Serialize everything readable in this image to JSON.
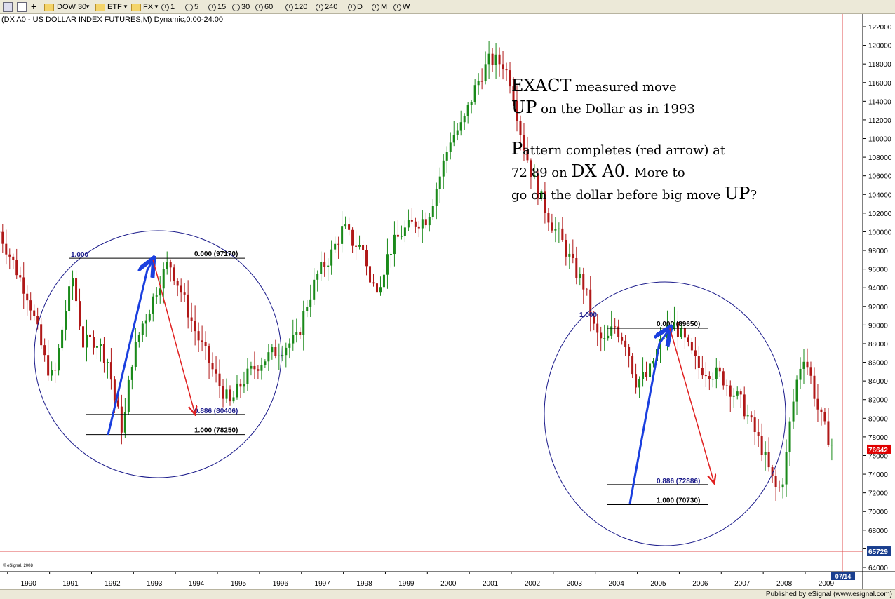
{
  "toolbar": {
    "items": [
      "DOW 30",
      "ETF",
      "FX"
    ],
    "intervals": [
      "1",
      "5",
      "15",
      "30",
      "60",
      "120",
      "240",
      "D",
      "M",
      "W"
    ]
  },
  "chart": {
    "title": "(DX A0 - US DOLLAR INDEX FUTURES,M) Dynamic,0:00-24:00",
    "watermark": "© eSignal, 2008",
    "published": "Published by eSignal (www.esignal.com)",
    "date_label": "07/14",
    "current_price": "76642",
    "crosshair_price": "65729"
  },
  "annotation": {
    "line1_big": "EXACT",
    "line1_rest": " measured move",
    "line2_big": "UP",
    "line2_rest": " on the Dollar as in 1993",
    "line3_big": "P",
    "line3_rest": "attern completes (red arrow) at",
    "line4_a": "72 89 on ",
    "line4_big": "DX A0.",
    "line4_rest": "  More to",
    "line5_a": "go on the dollar before big move ",
    "line5_big": "UP",
    "line5_rest": "?"
  },
  "fib_left": {
    "start": "1.000",
    "top": "0.000 (97170)",
    "mid": "0.886 (80406)",
    "bottom": "1.000 (78250)"
  },
  "fib_right": {
    "start": "1.000",
    "top": "0.000 (89650)",
    "mid": "0.886 (72886)",
    "bottom": "1.000 (70730)"
  },
  "chart_data": {
    "type": "candlestick",
    "title": "(DX A0 - US DOLLAR INDEX FUTURES,M) Dynamic,0:00-24:00",
    "ylim": [
      63500,
      122700
    ],
    "y_ticks": [
      64000,
      66000,
      68000,
      70000,
      72000,
      74000,
      76000,
      78000,
      80000,
      82000,
      84000,
      86000,
      88000,
      90000,
      92000,
      94000,
      96000,
      98000,
      100000,
      102000,
      104000,
      106000,
      108000,
      110000,
      112000,
      114000,
      116000,
      118000,
      120000,
      122000
    ],
    "x_labels": [
      "1990",
      "1991",
      "1992",
      "1993",
      "1994",
      "1995",
      "1996",
      "1997",
      "1998",
      "1999",
      "2000",
      "2001",
      "2002",
      "2003",
      "2004",
      "2005",
      "2006",
      "2007",
      "2008",
      "2009"
    ],
    "x_range": [
      1989.82,
      2010.37
    ],
    "price_path": [
      [
        1989.8,
        100000
      ],
      [
        1990.1,
        97000
      ],
      [
        1990.5,
        93000
      ],
      [
        1990.9,
        86000
      ],
      [
        1991.1,
        84000
      ],
      [
        1991.35,
        91000
      ],
      [
        1991.55,
        95000
      ],
      [
        1991.8,
        88000
      ],
      [
        1992.1,
        88500
      ],
      [
        1992.4,
        86000
      ],
      [
        1992.55,
        82000
      ],
      [
        1992.75,
        78500
      ],
      [
        1992.95,
        86000
      ],
      [
        1993.2,
        90000
      ],
      [
        1993.4,
        92000
      ],
      [
        1993.6,
        94500
      ],
      [
        1993.85,
        96800
      ],
      [
        1994.1,
        94000
      ],
      [
        1994.5,
        89000
      ],
      [
        1994.8,
        86000
      ],
      [
        1995.0,
        84000
      ],
      [
        1995.3,
        81500
      ],
      [
        1995.6,
        84000
      ],
      [
        1996.0,
        86000
      ],
      [
        1996.5,
        87500
      ],
      [
        1996.9,
        88500
      ],
      [
        1997.1,
        92000
      ],
      [
        1997.4,
        95500
      ],
      [
        1997.7,
        97500
      ],
      [
        1998.0,
        100500
      ],
      [
        1998.2,
        99000
      ],
      [
        1998.5,
        98000
      ],
      [
        1998.65,
        94000
      ],
      [
        1998.85,
        94500
      ],
      [
        1999.1,
        98000
      ],
      [
        1999.4,
        100000
      ],
      [
        1999.7,
        101000
      ],
      [
        2000.0,
        101500
      ],
      [
        2000.3,
        106000
      ],
      [
        2000.55,
        110000
      ],
      [
        2000.85,
        111500
      ],
      [
        2001.1,
        115000
      ],
      [
        2001.3,
        117000
      ],
      [
        2001.5,
        118500
      ],
      [
        2001.8,
        118000
      ],
      [
        2002.0,
        116000
      ],
      [
        2002.25,
        110000
      ],
      [
        2002.5,
        106000
      ],
      [
        2002.75,
        103000
      ],
      [
        2002.95,
        101000
      ],
      [
        2003.2,
        99000
      ],
      [
        2003.5,
        96000
      ],
      [
        2003.75,
        94000
      ],
      [
        2004.0,
        89000
      ],
      [
        2004.25,
        88000
      ],
      [
        2004.45,
        90000
      ],
      [
        2004.75,
        88000
      ],
      [
        2004.95,
        84000
      ],
      [
        2005.25,
        84500
      ],
      [
        2005.45,
        87000
      ],
      [
        2005.7,
        89500
      ],
      [
        2005.9,
        90000
      ],
      [
        2006.15,
        88000
      ],
      [
        2006.45,
        85500
      ],
      [
        2006.75,
        85000
      ],
      [
        2007.0,
        84500
      ],
      [
        2007.25,
        83000
      ],
      [
        2007.5,
        81500
      ],
      [
        2007.75,
        79000
      ],
      [
        2007.95,
        77000
      ],
      [
        2008.2,
        73500
      ],
      [
        2008.35,
        72000
      ],
      [
        2008.5,
        74000
      ],
      [
        2008.65,
        80000
      ],
      [
        2008.8,
        84000
      ],
      [
        2008.95,
        87000
      ],
      [
        2009.1,
        85000
      ],
      [
        2009.3,
        81000
      ],
      [
        2009.45,
        79000
      ],
      [
        2009.6,
        77500
      ],
      [
        2009.7,
        76642
      ]
    ]
  }
}
